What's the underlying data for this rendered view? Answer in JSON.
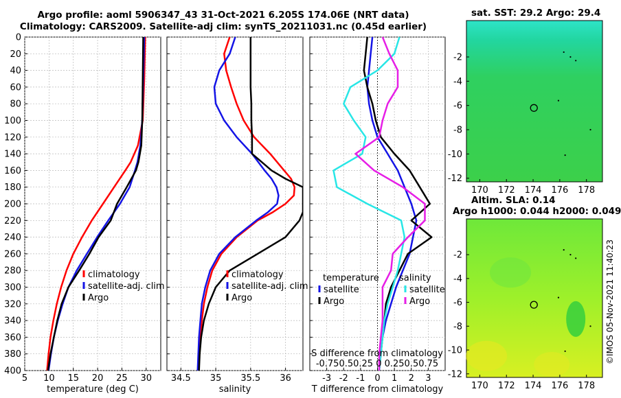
{
  "header": {
    "title_line1": "Argo profile: aoml 5906347_43 31-Oct-2021 6.205S 174.06E (NRT data)",
    "title_line2": "Climatology: CARS2009. Satellite-adj clim: synTS_20211031.nc (0.45d earlier)"
  },
  "maps": {
    "sst_title": "sat. SST: 29.2 Argo: 29.4",
    "sla_title1": "Altim. SLA: 0.14",
    "sla_title2": "Argo h1000: 0.044 h2000: 0.049",
    "x_ticks": [
      170,
      172,
      174,
      176,
      178
    ],
    "y_ticks": [
      -2,
      -4,
      -6,
      -8,
      -10,
      -12
    ],
    "xlim": [
      169,
      179.2
    ],
    "ylim": [
      -12.3,
      1.0
    ],
    "float_lon": 174.06,
    "float_lat": -6.205
  },
  "footer": {
    "stamp": "©IMOS 05-Nov-2021 11:40:23"
  },
  "colors": {
    "climatology": "#ff0000",
    "satellite": "#1414e6",
    "argo": "#000000",
    "cyan": "#28e6e6",
    "magenta": "#e61ee6"
  },
  "chart_data": [
    {
      "type": "line",
      "xlabel": "temperature (deg C)",
      "ylabel": "",
      "xlim": [
        5,
        33
      ],
      "ylim": [
        400,
        0
      ],
      "x_ticks": [
        5,
        10,
        15,
        20,
        25,
        30
      ],
      "y_ticks": [
        0,
        20,
        40,
        60,
        80,
        100,
        120,
        140,
        160,
        180,
        200,
        220,
        240,
        260,
        280,
        300,
        320,
        340,
        360,
        380,
        400
      ],
      "legend": [
        "climatology",
        "satellite-adj. clim",
        "Argo"
      ],
      "legend_position": "lower-right",
      "depth": [
        0,
        50,
        100,
        130,
        150,
        160,
        180,
        200,
        220,
        240,
        260,
        280,
        300,
        320,
        340,
        360,
        380,
        400
      ],
      "series": [
        {
          "name": "climatology",
          "values": [
            29.8,
            29.6,
            29.3,
            28.3,
            26.8,
            25.7,
            23.4,
            21.1,
            18.8,
            16.8,
            15.0,
            13.6,
            12.5,
            11.6,
            10.9,
            10.3,
            9.9,
            9.6
          ]
        },
        {
          "name": "satellite-adj. clim",
          "values": [
            29.6,
            29.4,
            29.2,
            28.8,
            28.2,
            27.7,
            26.6,
            24.6,
            22.2,
            19.9,
            17.8,
            15.7,
            14.0,
            12.8,
            11.8,
            11.0,
            10.4,
            9.9
          ]
        },
        {
          "name": "Argo",
          "values": [
            29.4,
            29.3,
            29.2,
            29.0,
            28.4,
            27.9,
            26.0,
            24.0,
            22.7,
            20.2,
            18.3,
            16.2,
            14.0,
            12.6,
            11.7,
            11.0,
            10.3,
            9.8
          ]
        }
      ]
    },
    {
      "type": "line",
      "xlabel": "salinity",
      "ylabel": "",
      "xlim": [
        34.3,
        36.25
      ],
      "ylim": [
        400,
        0
      ],
      "x_ticks": [
        34.5,
        35,
        35.5,
        36
      ],
      "x_tick_labels": [
        "34.5",
        "35",
        "35.5",
        "36"
      ],
      "legend": [
        "climatology",
        "satellite-adj. clim",
        "Argo"
      ],
      "legend_position": "lower-right",
      "depth": [
        0,
        20,
        40,
        60,
        80,
        100,
        120,
        140,
        160,
        170,
        180,
        190,
        200,
        210,
        220,
        240,
        260,
        280,
        300,
        320,
        340,
        360,
        380,
        400
      ],
      "series": [
        {
          "name": "climatology",
          "values": [
            35.2,
            35.12,
            35.15,
            35.22,
            35.3,
            35.4,
            35.55,
            35.78,
            35.98,
            36.08,
            36.13,
            36.12,
            36.0,
            35.82,
            35.6,
            35.3,
            35.08,
            34.95,
            34.88,
            34.83,
            34.8,
            34.78,
            34.76,
            34.75
          ]
        },
        {
          "name": "satellite-adj. clim",
          "values": [
            35.28,
            35.2,
            35.05,
            34.98,
            35.0,
            35.12,
            35.3,
            35.52,
            35.7,
            35.8,
            35.87,
            35.9,
            35.88,
            35.75,
            35.58,
            35.28,
            35.05,
            34.92,
            34.85,
            34.8,
            34.78,
            34.76,
            34.75,
            34.74
          ]
        },
        {
          "name": "Argo",
          "values": [
            35.5,
            35.5,
            35.5,
            35.5,
            35.51,
            35.51,
            35.52,
            35.52,
            35.8,
            36.0,
            36.25,
            36.25,
            36.25,
            36.25,
            36.2,
            36.0,
            35.6,
            35.2,
            35.0,
            34.9,
            34.83,
            34.79,
            34.77,
            34.76
          ]
        }
      ]
    },
    {
      "type": "line",
      "xlabel": "T difference from climatology",
      "top_xlabel": "S difference from climatology",
      "top_tick_labels": "-0.750.50.25  0  0.250.50.75",
      "xlim": [
        -4,
        4
      ],
      "ylim": [
        400,
        0
      ],
      "x_ticks": [
        -3,
        -2,
        -1,
        0,
        1,
        2,
        3
      ],
      "legend_temperature": [
        "temperature",
        "satellite",
        "Argo"
      ],
      "legend_salinity": [
        "salinity",
        "satellite",
        "Argo"
      ],
      "legend_position": "lower-center",
      "depth": [
        0,
        20,
        40,
        60,
        80,
        100,
        120,
        140,
        160,
        180,
        200,
        220,
        240,
        260,
        280,
        300,
        320,
        340,
        360,
        380,
        400
      ],
      "series": [
        {
          "name": "T satellite",
          "values": [
            -0.3,
            -0.4,
            -0.5,
            -0.6,
            -0.5,
            -0.3,
            0.0,
            0.6,
            1.2,
            1.6,
            2.0,
            2.3,
            2.1,
            1.9,
            1.5,
            1.1,
            0.8,
            0.5,
            0.3,
            0.15,
            0.1
          ]
        },
        {
          "name": "T Argo",
          "values": [
            -0.6,
            -0.7,
            -0.8,
            -0.6,
            -0.3,
            -0.1,
            0.2,
            1.0,
            1.9,
            2.5,
            3.1,
            2.0,
            3.2,
            1.8,
            1.3,
            0.8,
            0.5,
            0.4,
            0.3,
            0.2,
            0.1
          ]
        },
        {
          "name": "S satellite",
          "values": [
            1.3,
            1.0,
            0.0,
            -1.6,
            -2.0,
            -1.4,
            -0.7,
            -0.9,
            -2.6,
            -2.4,
            -0.6,
            1.4,
            1.6,
            1.4,
            1.2,
            0.9,
            0.6,
            0.4,
            0.3,
            0.2,
            0.1
          ]
        },
        {
          "name": "S Argo",
          "values": [
            0.3,
            0.7,
            1.2,
            1.2,
            0.6,
            0.3,
            0.1,
            -1.3,
            -0.2,
            1.5,
            2.8,
            2.8,
            1.8,
            0.9,
            0.8,
            0.3,
            0.3,
            0.3,
            0.2,
            0.1,
            0.1
          ]
        }
      ]
    }
  ]
}
